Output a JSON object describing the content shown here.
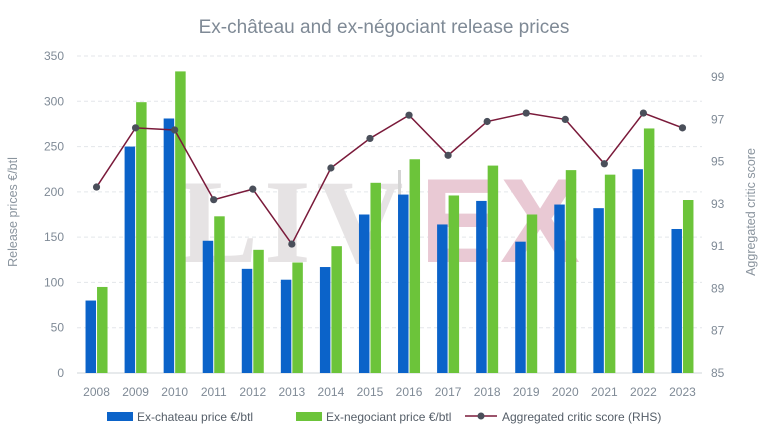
{
  "watermark": {
    "left": "LIV",
    "right": "EX"
  },
  "chart_data": {
    "type": "bar",
    "title": "Ex-château and ex-négociant release prices",
    "ylabel": "Release prices €/btl",
    "y2label": "Aggregated critic score",
    "categories": [
      "2008",
      "2009",
      "2010",
      "2011",
      "2012",
      "2013",
      "2014",
      "2015",
      "2016",
      "2017",
      "2018",
      "2019",
      "2020",
      "2021",
      "2022",
      "2023"
    ],
    "ylim": [
      0,
      350
    ],
    "yticks": [
      "0",
      "50",
      "100",
      "150",
      "200",
      "250",
      "300",
      "350"
    ],
    "y2lim": [
      85,
      100
    ],
    "y2ticks": [
      "85",
      "87",
      "89",
      "91",
      "93",
      "95",
      "97",
      "99"
    ],
    "grid": true,
    "legend_position": "bottom",
    "colors": {
      "series1": "#0b63c9",
      "series2": "#6cc43a",
      "line": "#7a1a3a",
      "marker": "#4a4f5a"
    },
    "series": [
      {
        "name": "Ex-chateau price €/btl",
        "type": "bar",
        "axis": "left",
        "values": [
          80,
          250,
          281,
          146,
          115,
          103,
          117,
          175,
          197,
          164,
          190,
          145,
          186,
          182,
          225,
          159
        ]
      },
      {
        "name": "Ex-negociant price €/btl",
        "type": "bar",
        "axis": "left",
        "values": [
          95,
          299,
          333,
          173,
          136,
          122,
          140,
          210,
          236,
          196,
          229,
          175,
          224,
          219,
          270,
          191
        ]
      },
      {
        "name": "Aggregated critic score (RHS)",
        "type": "line",
        "axis": "right",
        "values": [
          93.8,
          96.6,
          96.5,
          93.2,
          93.7,
          91.1,
          94.7,
          96.1,
          97.2,
          95.3,
          96.9,
          97.3,
          97.0,
          94.9,
          97.3,
          96.6
        ]
      }
    ]
  }
}
